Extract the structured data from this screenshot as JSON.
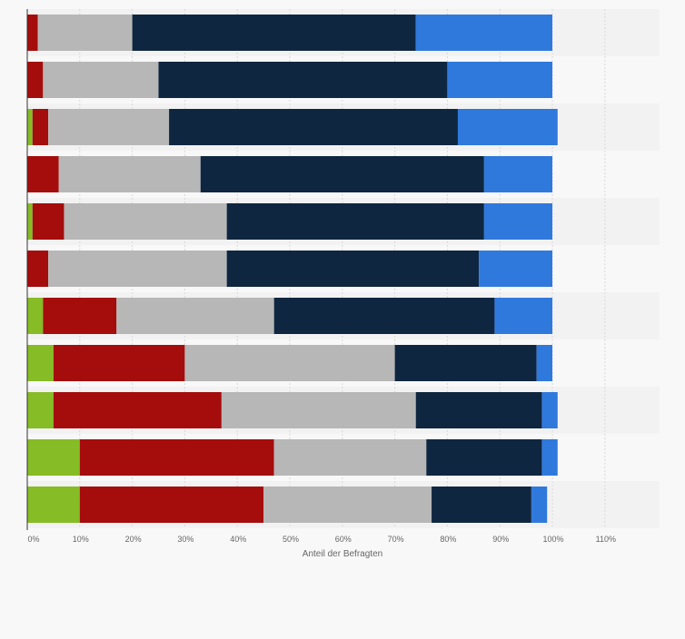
{
  "chart_data": {
    "type": "bar",
    "orientation": "horizontal",
    "stacked": true,
    "xlabel": "Anteil der Befragten",
    "x_ticks": [
      "0%",
      "10%",
      "20%",
      "30%",
      "40%",
      "50%",
      "60%",
      "70%",
      "80%",
      "90%",
      "100%",
      "110%"
    ],
    "xlim": [
      0,
      120
    ],
    "grid": true,
    "series": [
      {
        "color": "#86bc25",
        "values": [
          0,
          0,
          1,
          0,
          1,
          0,
          3,
          5,
          5,
          10,
          10
        ]
      },
      {
        "color": "#a50c0c",
        "values": [
          2,
          3,
          3,
          6,
          6,
          4,
          14,
          25,
          32,
          37,
          35
        ]
      },
      {
        "color": "#b7b7b7",
        "values": [
          18,
          22,
          23,
          27,
          31,
          34,
          30,
          40,
          37,
          29,
          32
        ]
      },
      {
        "color": "#0f2640",
        "values": [
          54,
          55,
          55,
          54,
          49,
          48,
          42,
          27,
          24,
          22,
          19
        ]
      },
      {
        "color": "#2f79dd",
        "values": [
          26,
          20,
          19,
          13,
          13,
          14,
          11,
          3,
          3,
          3,
          3
        ]
      }
    ]
  }
}
